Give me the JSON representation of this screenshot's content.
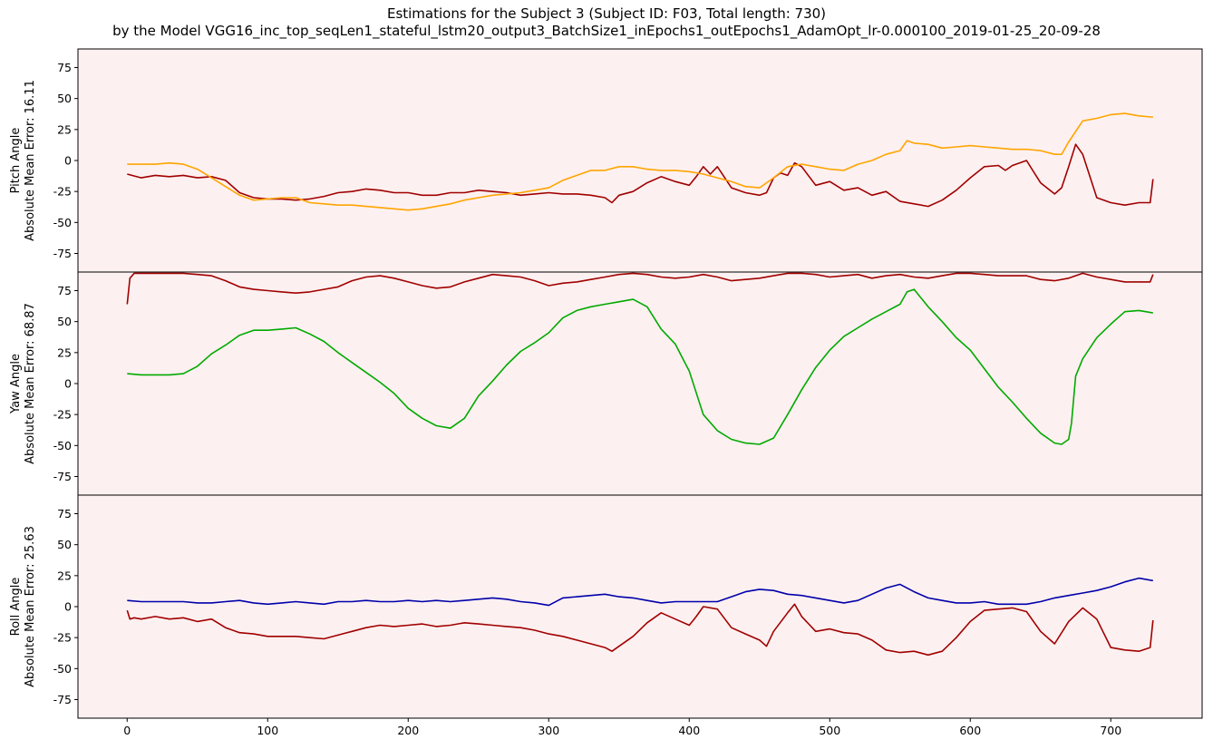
{
  "figure": {
    "title_line1": "Estimations for the Subject 3 (Subject ID: F03, Total length: 730)",
    "title_line2": "by the Model VGG16_inc_top_seqLen1_stateful_lstm20_output3_BatchSize1_inEpochs1_outEpochs1_AdamOpt_lr-0.000100_2019-01-25_20-09-28"
  },
  "chart_data": [
    {
      "type": "line",
      "ylabel_line1": "Pitch Angle",
      "ylabel_line2": "Absolute Mean Error: 16.11",
      "xlim": [
        -35,
        765
      ],
      "ylim": [
        -90,
        90
      ],
      "yticks": [
        -75,
        -50,
        -25,
        0,
        25,
        50,
        75
      ],
      "background": "#fdf0f0",
      "series": [
        {
          "role": "estimate",
          "color": "#a00000",
          "x": [
            0,
            10,
            20,
            30,
            40,
            50,
            60,
            70,
            80,
            90,
            100,
            110,
            120,
            130,
            140,
            150,
            160,
            170,
            180,
            190,
            200,
            210,
            220,
            230,
            240,
            250,
            260,
            270,
            280,
            290,
            300,
            310,
            320,
            330,
            340,
            345,
            350,
            360,
            370,
            380,
            390,
            400,
            405,
            410,
            415,
            420,
            430,
            440,
            450,
            455,
            460,
            465,
            470,
            475,
            480,
            490,
            500,
            510,
            520,
            530,
            540,
            550,
            560,
            570,
            580,
            590,
            600,
            610,
            620,
            625,
            630,
            640,
            650,
            660,
            665,
            670,
            675,
            680,
            690,
            700,
            710,
            720,
            728,
            730
          ],
          "y": [
            -11,
            -14,
            -12,
            -13,
            -12,
            -14,
            -13,
            -16,
            -26,
            -30,
            -31,
            -31,
            -32,
            -31,
            -29,
            -26,
            -25,
            -23,
            -24,
            -26,
            -26,
            -28,
            -28,
            -26,
            -26,
            -24,
            -25,
            -26,
            -28,
            -27,
            -26,
            -27,
            -27,
            -28,
            -30,
            -34,
            -28,
            -25,
            -18,
            -13,
            -17,
            -20,
            -13,
            -5,
            -11,
            -5,
            -22,
            -26,
            -28,
            -26,
            -14,
            -10,
            -12,
            -2,
            -5,
            -20,
            -17,
            -24,
            -22,
            -28,
            -25,
            -33,
            -35,
            -37,
            -32,
            -24,
            -14,
            -5,
            -4,
            -8,
            -4,
            0,
            -18,
            -27,
            -22,
            -5,
            13,
            5,
            -30,
            -34,
            -36,
            -34,
            -34,
            -15
          ]
        },
        {
          "role": "ground_truth",
          "color": "#ffa500",
          "x": [
            0,
            10,
            20,
            30,
            40,
            50,
            60,
            70,
            80,
            90,
            100,
            110,
            120,
            130,
            140,
            150,
            160,
            170,
            180,
            190,
            200,
            210,
            220,
            230,
            240,
            250,
            260,
            270,
            280,
            290,
            300,
            310,
            320,
            330,
            340,
            350,
            360,
            370,
            380,
            390,
            400,
            410,
            420,
            430,
            440,
            450,
            460,
            470,
            480,
            490,
            500,
            510,
            520,
            530,
            540,
            550,
            555,
            560,
            570,
            580,
            590,
            600,
            610,
            620,
            630,
            640,
            650,
            660,
            665,
            670,
            680,
            690,
            700,
            710,
            720,
            730
          ],
          "y": [
            -3,
            -3,
            -3,
            -2,
            -3,
            -7,
            -14,
            -21,
            -28,
            -32,
            -31,
            -30,
            -30,
            -34,
            -35,
            -36,
            -36,
            -37,
            -38,
            -39,
            -40,
            -39,
            -37,
            -35,
            -32,
            -30,
            -28,
            -27,
            -26,
            -24,
            -22,
            -16,
            -12,
            -8,
            -8,
            -5,
            -5,
            -7,
            -8,
            -8,
            -9,
            -11,
            -14,
            -17,
            -21,
            -22,
            -14,
            -5,
            -3,
            -5,
            -7,
            -8,
            -3,
            0,
            5,
            8,
            16,
            14,
            13,
            10,
            11,
            12,
            11,
            10,
            9,
            9,
            8,
            5,
            5,
            15,
            32,
            34,
            37,
            38,
            36,
            35
          ]
        }
      ]
    },
    {
      "type": "line",
      "ylabel_line1": "Yaw Angle",
      "ylabel_line2": "Absolute Mean Error: 68.87",
      "xlim": [
        -35,
        765
      ],
      "ylim": [
        -90,
        90
      ],
      "yticks": [
        -75,
        -50,
        -25,
        0,
        25,
        50,
        75
      ],
      "background": "#fdf0f0",
      "series": [
        {
          "role": "estimate",
          "color": "#a00000",
          "x": [
            0,
            2,
            5,
            10,
            20,
            30,
            40,
            50,
            60,
            70,
            80,
            90,
            100,
            110,
            120,
            130,
            140,
            150,
            160,
            170,
            180,
            190,
            200,
            210,
            220,
            230,
            240,
            250,
            260,
            270,
            280,
            290,
            300,
            310,
            320,
            330,
            340,
            350,
            360,
            370,
            380,
            390,
            400,
            410,
            420,
            430,
            440,
            450,
            460,
            470,
            480,
            490,
            500,
            510,
            520,
            530,
            540,
            550,
            560,
            570,
            580,
            590,
            600,
            610,
            620,
            630,
            640,
            650,
            660,
            670,
            680,
            690,
            700,
            710,
            720,
            728,
            730
          ],
          "y": [
            64,
            85,
            89,
            89,
            89,
            89,
            89,
            88,
            87,
            83,
            78,
            76,
            75,
            74,
            73,
            74,
            76,
            78,
            83,
            86,
            87,
            85,
            82,
            79,
            77,
            78,
            82,
            85,
            88,
            87,
            86,
            83,
            79,
            81,
            82,
            84,
            86,
            88,
            89,
            88,
            86,
            85,
            86,
            88,
            86,
            83,
            84,
            85,
            87,
            89,
            89,
            88,
            86,
            87,
            88,
            85,
            87,
            88,
            86,
            85,
            87,
            89,
            89,
            88,
            87,
            87,
            87,
            84,
            83,
            85,
            89,
            86,
            84,
            82,
            82,
            82,
            88
          ]
        },
        {
          "role": "ground_truth",
          "color": "#00aa00",
          "x": [
            0,
            10,
            20,
            30,
            40,
            50,
            60,
            70,
            80,
            90,
            100,
            110,
            120,
            130,
            140,
            150,
            160,
            170,
            180,
            190,
            200,
            210,
            220,
            230,
            240,
            250,
            260,
            270,
            280,
            290,
            300,
            310,
            320,
            330,
            340,
            350,
            360,
            370,
            380,
            390,
            400,
            410,
            420,
            430,
            440,
            450,
            460,
            470,
            480,
            490,
            500,
            510,
            520,
            530,
            540,
            550,
            555,
            560,
            570,
            580,
            590,
            600,
            610,
            620,
            630,
            640,
            650,
            660,
            665,
            670,
            672,
            675,
            680,
            690,
            700,
            710,
            720,
            730
          ],
          "y": [
            8,
            7,
            7,
            7,
            8,
            14,
            24,
            31,
            39,
            43,
            43,
            44,
            45,
            40,
            34,
            25,
            17,
            9,
            1,
            -8,
            -20,
            -28,
            -34,
            -36,
            -28,
            -10,
            2,
            15,
            26,
            33,
            41,
            53,
            59,
            62,
            64,
            66,
            68,
            62,
            44,
            32,
            10,
            -25,
            -38,
            -45,
            -48,
            -49,
            -44,
            -25,
            -5,
            13,
            27,
            38,
            45,
            52,
            58,
            64,
            74,
            76,
            62,
            50,
            37,
            27,
            12,
            -3,
            -15,
            -28,
            -40,
            -48,
            -49,
            -45,
            -32,
            6,
            20,
            37,
            48,
            58,
            59,
            57
          ]
        }
      ]
    },
    {
      "type": "line",
      "ylabel_line1": "Roll Angle",
      "ylabel_line2": "Absolute Mean Error: 25.63",
      "xlim": [
        -35,
        765
      ],
      "ylim": [
        -90,
        90
      ],
      "xticks": [
        0,
        100,
        200,
        300,
        400,
        500,
        600,
        700
      ],
      "yticks": [
        -75,
        -50,
        -25,
        0,
        25,
        50,
        75
      ],
      "background": "#fdf0f0",
      "series": [
        {
          "role": "estimate",
          "color": "#a00000",
          "x": [
            0,
            2,
            5,
            10,
            20,
            30,
            40,
            50,
            60,
            70,
            80,
            90,
            100,
            110,
            120,
            130,
            140,
            150,
            160,
            170,
            180,
            190,
            200,
            210,
            220,
            230,
            240,
            250,
            260,
            270,
            280,
            290,
            300,
            310,
            320,
            330,
            340,
            345,
            350,
            360,
            370,
            380,
            390,
            400,
            405,
            410,
            420,
            430,
            440,
            450,
            455,
            460,
            470,
            475,
            480,
            490,
            500,
            510,
            520,
            530,
            540,
            550,
            560,
            570,
            580,
            590,
            600,
            610,
            620,
            630,
            640,
            650,
            660,
            670,
            680,
            690,
            700,
            710,
            720,
            728,
            730
          ],
          "y": [
            -3,
            -10,
            -9,
            -10,
            -8,
            -10,
            -9,
            -12,
            -10,
            -17,
            -21,
            -22,
            -24,
            -24,
            -24,
            -25,
            -26,
            -23,
            -20,
            -17,
            -15,
            -16,
            -15,
            -14,
            -16,
            -15,
            -13,
            -14,
            -15,
            -16,
            -17,
            -19,
            -22,
            -24,
            -27,
            -30,
            -33,
            -36,
            -32,
            -24,
            -13,
            -5,
            -10,
            -15,
            -8,
            0,
            -2,
            -17,
            -22,
            -27,
            -32,
            -20,
            -5,
            2,
            -8,
            -20,
            -18,
            -21,
            -22,
            -27,
            -35,
            -37,
            -36,
            -39,
            -36,
            -25,
            -12,
            -3,
            -2,
            -1,
            -4,
            -20,
            -30,
            -12,
            -1,
            -10,
            -33,
            -35,
            -36,
            -33,
            -11
          ]
        },
        {
          "role": "ground_truth",
          "color": "#0000aa",
          "x": [
            0,
            10,
            20,
            30,
            40,
            50,
            60,
            70,
            80,
            90,
            100,
            110,
            120,
            130,
            140,
            150,
            160,
            170,
            180,
            190,
            200,
            210,
            220,
            230,
            240,
            250,
            260,
            270,
            280,
            290,
            300,
            310,
            320,
            330,
            340,
            350,
            360,
            370,
            380,
            390,
            400,
            410,
            420,
            430,
            440,
            450,
            460,
            470,
            480,
            490,
            500,
            510,
            520,
            530,
            540,
            550,
            560,
            570,
            580,
            590,
            600,
            610,
            620,
            630,
            640,
            650,
            660,
            670,
            680,
            690,
            700,
            710,
            720,
            730
          ],
          "y": [
            5,
            4,
            4,
            4,
            4,
            3,
            3,
            4,
            5,
            3,
            2,
            3,
            4,
            3,
            2,
            4,
            4,
            5,
            4,
            4,
            5,
            4,
            5,
            4,
            5,
            6,
            7,
            6,
            4,
            3,
            1,
            7,
            8,
            9,
            10,
            8,
            7,
            5,
            3,
            4,
            4,
            4,
            4,
            8,
            12,
            14,
            13,
            10,
            9,
            7,
            5,
            3,
            5,
            10,
            15,
            18,
            12,
            7,
            5,
            3,
            3,
            4,
            2,
            2,
            2,
            4,
            7,
            9,
            11,
            13,
            16,
            20,
            23,
            21
          ]
        }
      ]
    }
  ]
}
